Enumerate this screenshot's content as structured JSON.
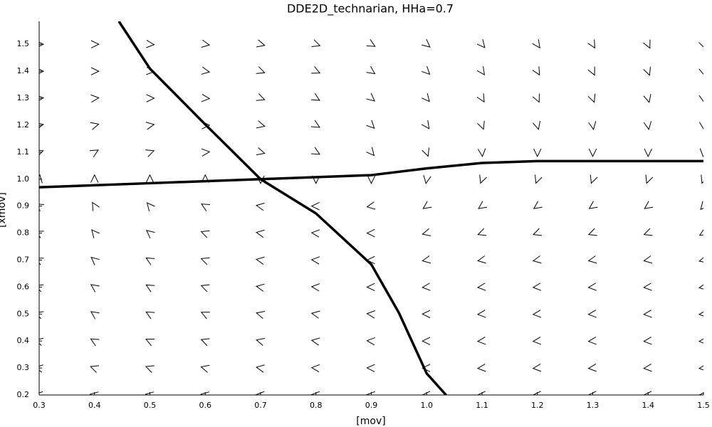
{
  "chart_data": {
    "type": "quiver",
    "title": "DDE2D_technarian, HHa=0.7",
    "x_label": "[mov]",
    "y_label": "[xmov]",
    "xlim": [
      0.3,
      1.5
    ],
    "ylim": [
      0.2,
      1.585
    ],
    "xticks": [
      0.3,
      0.4,
      0.5,
      0.6,
      0.7,
      0.8,
      0.9,
      {
        "value": 1,
        "label": "1.0"
      },
      1.1,
      1.2,
      1.3,
      1.4,
      1.5
    ],
    "yticks": [
      0.2,
      0.3,
      0.4,
      0.5,
      0.6,
      0.7,
      0.8,
      0.9,
      {
        "value": 1,
        "label": "1.0"
      },
      1.1,
      1.2,
      1.3,
      1.4,
      1.5
    ],
    "field_color": "#000000",
    "field_x": [
      0.3,
      0.4,
      0.5,
      0.6,
      0.7,
      0.8,
      0.9,
      1.0,
      1.1,
      1.2,
      1.3,
      1.4,
      1.5
    ],
    "field_y": [
      1.5,
      1.4,
      1.3,
      1.2,
      1.1,
      1.0,
      0.9,
      0.8,
      0.7,
      0.6,
      0.5,
      0.4,
      0.3,
      0.2
    ],
    "angles": [
      [
        0,
        0,
        -5,
        -10,
        -15,
        -20,
        -30,
        -40,
        -50,
        -55,
        -60,
        -65,
        -70
      ],
      [
        0,
        0,
        -5,
        -10,
        -20,
        -25,
        -35,
        -45,
        -55,
        -60,
        -65,
        -70,
        -75
      ],
      [
        5,
        5,
        0,
        -5,
        -20,
        -30,
        -40,
        -50,
        -60,
        -65,
        -70,
        -75,
        -80
      ],
      [
        10,
        15,
        10,
        0,
        -15,
        -30,
        -45,
        -55,
        -70,
        -75,
        -80,
        -80,
        -85
      ],
      [
        20,
        30,
        20,
        5,
        -15,
        -30,
        -50,
        -70,
        -85,
        -90,
        -90,
        -90,
        -95
      ],
      [
        80,
        90,
        90,
        90,
        -90,
        -90,
        -90,
        -100,
        -110,
        -110,
        -110,
        -110,
        -110
      ],
      [
        150,
        120,
        130,
        150,
        170,
        180,
        190,
        215,
        215,
        215,
        215,
        215,
        230
      ],
      [
        155,
        130,
        140,
        160,
        170,
        175,
        180,
        195,
        200,
        200,
        200,
        200,
        210
      ],
      [
        155,
        140,
        150,
        160,
        170,
        175,
        180,
        190,
        190,
        190,
        190,
        190,
        195
      ],
      [
        160,
        145,
        150,
        160,
        170,
        175,
        180,
        185,
        185,
        185,
        185,
        185,
        190
      ],
      [
        160,
        145,
        150,
        155,
        165,
        170,
        175,
        180,
        185,
        185,
        185,
        185,
        185
      ],
      [
        165,
        150,
        155,
        160,
        165,
        170,
        175,
        180,
        185,
        185,
        185,
        185,
        185
      ],
      [
        170,
        160,
        160,
        165,
        170,
        175,
        178,
        180,
        185,
        185,
        185,
        185,
        185
      ],
      [
        175,
        170,
        170,
        170,
        175,
        175,
        175,
        180,
        180,
        180,
        180,
        180,
        180
      ]
    ],
    "curves": [
      {
        "color": "#000000",
        "x": [
          0.444,
          0.5,
          0.6,
          0.7,
          0.8,
          0.9,
          0.95,
          1.0,
          1.035
        ],
        "y": [
          1.585,
          1.41,
          1.203,
          1.0,
          0.873,
          0.684,
          0.504,
          0.28,
          0.2
        ]
      },
      {
        "color": "#000000",
        "x": [
          0.3,
          0.5,
          0.7,
          0.9,
          1.0,
          1.1,
          1.2,
          1.5
        ],
        "y": [
          0.97,
          0.985,
          1.0,
          1.015,
          1.04,
          1.06,
          1.067,
          1.067
        ]
      }
    ]
  }
}
